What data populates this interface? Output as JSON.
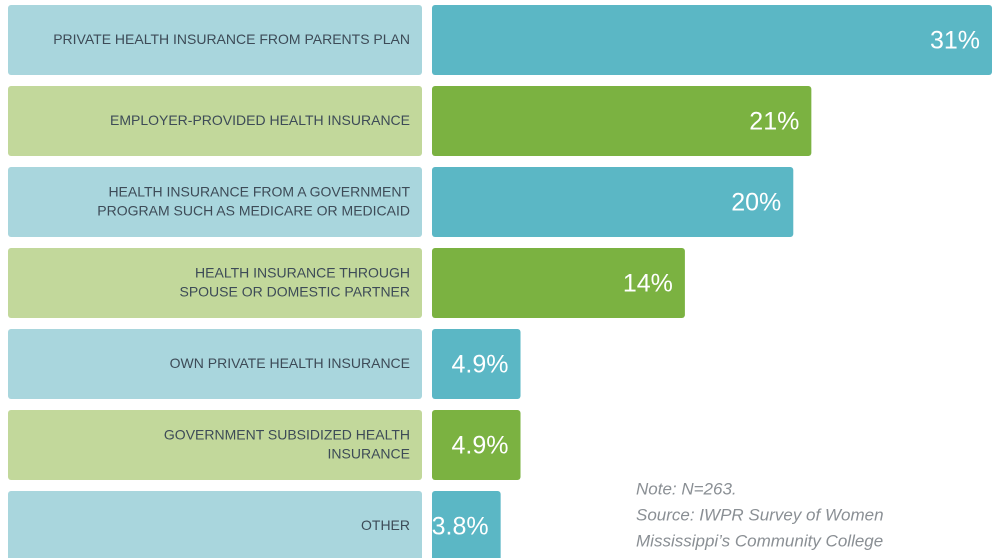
{
  "chart_data": {
    "type": "bar",
    "categories": [
      [
        "PRIVATE HEALTH INSURANCE FROM PARENTS PLAN"
      ],
      [
        "EMPLOYER-PROVIDED HEALTH INSURANCE"
      ],
      [
        "HEALTH INSURANCE FROM A GOVERNMENT",
        "PROGRAM SUCH AS MEDICARE OR MEDICAID"
      ],
      [
        "HEALTH INSURANCE THROUGH",
        "SPOUSE OR DOMESTIC PARTNER"
      ],
      [
        "OWN PRIVATE HEALTH INSURANCE"
      ],
      [
        "GOVERNMENT SUBSIDIZED HEALTH",
        "INSURANCE"
      ],
      [
        "OTHER"
      ]
    ],
    "values": [
      31,
      21,
      20,
      14,
      4.9,
      4.9,
      3.8
    ],
    "value_labels": [
      "31%",
      "21%",
      "20%",
      "14%",
      "4.9%",
      "4.9%",
      "3.8%"
    ],
    "colors": [
      "#5bb7c5",
      "#7bb241",
      "#5bb7c5",
      "#7bb241",
      "#5bb7c5",
      "#7bb241",
      "#5bb7c5"
    ],
    "label_colors": [
      "#a9d6dd",
      "#c2d89b",
      "#a9d6dd",
      "#c2d89b",
      "#a9d6dd",
      "#c2d89b",
      "#a9d6dd"
    ],
    "notes": [
      "Note: N=263.",
      "Source: IWPR Survey of Women",
      "Mississippi’s Community College"
    ]
  }
}
